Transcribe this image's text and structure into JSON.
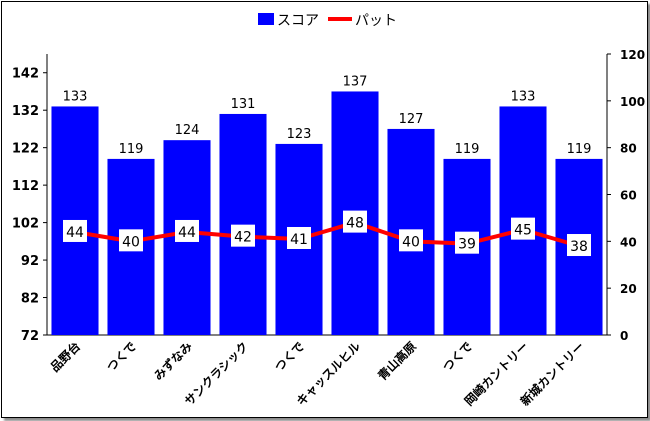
{
  "chart_data": {
    "type": "bar",
    "categories": [
      "品野台",
      "つくで",
      "みずなみ",
      "サンクラシック",
      "つくで",
      "キャッスルヒル",
      "青山高原",
      "つくで",
      "岡崎カントリー",
      "新城カントリー"
    ],
    "series": [
      {
        "name": "スコア",
        "type": "bar",
        "axis": "left",
        "color": "#0000ff",
        "values": [
          133,
          119,
          124,
          131,
          123,
          137,
          127,
          119,
          133,
          119
        ]
      },
      {
        "name": "パット",
        "type": "line",
        "axis": "right",
        "color": "#ff0000",
        "values": [
          44,
          40,
          44,
          42,
          41,
          48,
          40,
          39,
          45,
          38
        ]
      }
    ],
    "y_left": {
      "ylim": [
        72,
        147
      ],
      "ticks": [
        72,
        82,
        92,
        102,
        112,
        122,
        132,
        142
      ]
    },
    "y_right": {
      "ylim": [
        0,
        120
      ],
      "ticks": [
        0,
        20,
        40,
        60,
        80,
        100,
        120
      ]
    },
    "legend": "top-center",
    "grid": false,
    "title": "",
    "xlabel": "",
    "ylabel": ""
  }
}
